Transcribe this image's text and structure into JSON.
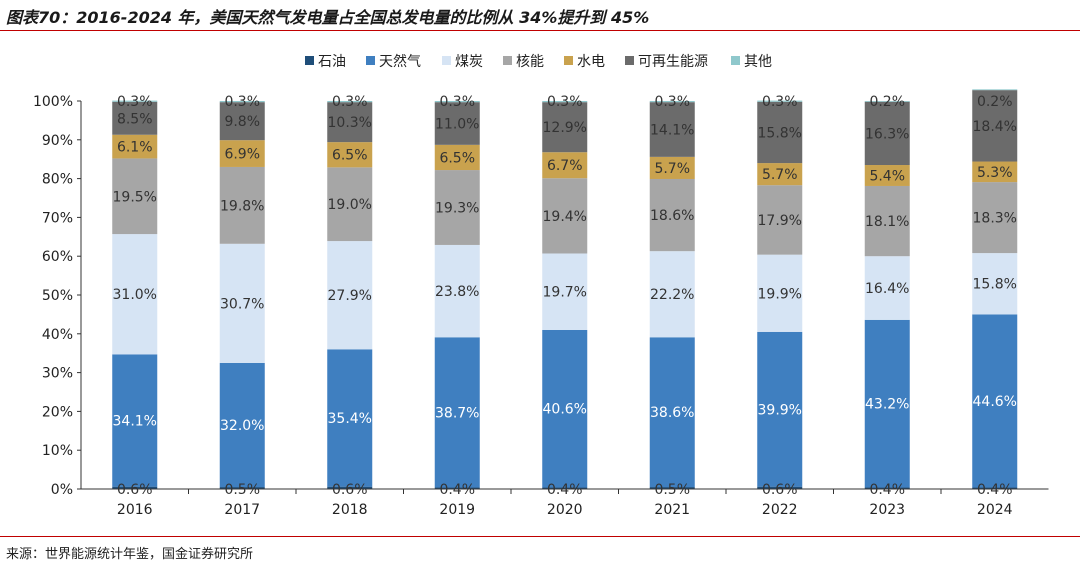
{
  "title": "图表70：2016-2024 年，美国天然气发电量占全国总发电量的比例从 34%提升到 45%",
  "source": "来源：世界能源统计年鉴，国金证券研究所",
  "chart_data": {
    "type": "stacked-bar",
    "categories": [
      "2016",
      "2017",
      "2018",
      "2019",
      "2020",
      "2021",
      "2022",
      "2023",
      "2024"
    ],
    "ylim": [
      0,
      100
    ],
    "yticks": [
      "0%",
      "10%",
      "20%",
      "30%",
      "40%",
      "50%",
      "60%",
      "70%",
      "80%",
      "90%",
      "100%"
    ],
    "legend_position": "top",
    "grid": false,
    "series": [
      {
        "name": "石油",
        "color": "#1f4e79",
        "values": [
          0.6,
          0.5,
          0.6,
          0.4,
          0.4,
          0.5,
          0.6,
          0.4,
          0.4
        ]
      },
      {
        "name": "天然气",
        "color": "#3f7fc0",
        "values": [
          34.1,
          32.0,
          35.4,
          38.7,
          40.6,
          38.6,
          39.9,
          43.2,
          44.6
        ]
      },
      {
        "name": "煤炭",
        "color": "#d6e4f4",
        "values": [
          31.0,
          30.7,
          27.9,
          23.8,
          19.7,
          22.2,
          19.9,
          16.4,
          15.8
        ]
      },
      {
        "name": "核能",
        "color": "#a6a6a6",
        "values": [
          19.5,
          19.8,
          19.0,
          19.3,
          19.4,
          18.6,
          17.9,
          18.1,
          18.3
        ]
      },
      {
        "name": "水电",
        "color": "#c9a24e",
        "values": [
          6.1,
          6.9,
          6.5,
          6.5,
          6.7,
          5.7,
          5.7,
          5.4,
          5.3
        ]
      },
      {
        "name": "可再生能源",
        "color": "#6b6b6b",
        "values": [
          8.5,
          9.8,
          10.3,
          11.0,
          12.9,
          14.1,
          15.8,
          16.3,
          18.4
        ]
      },
      {
        "name": "其他",
        "color": "#8fc8cc",
        "values": [
          0.3,
          0.3,
          0.3,
          0.3,
          0.3,
          0.3,
          0.3,
          0.2,
          0.2
        ]
      }
    ]
  }
}
